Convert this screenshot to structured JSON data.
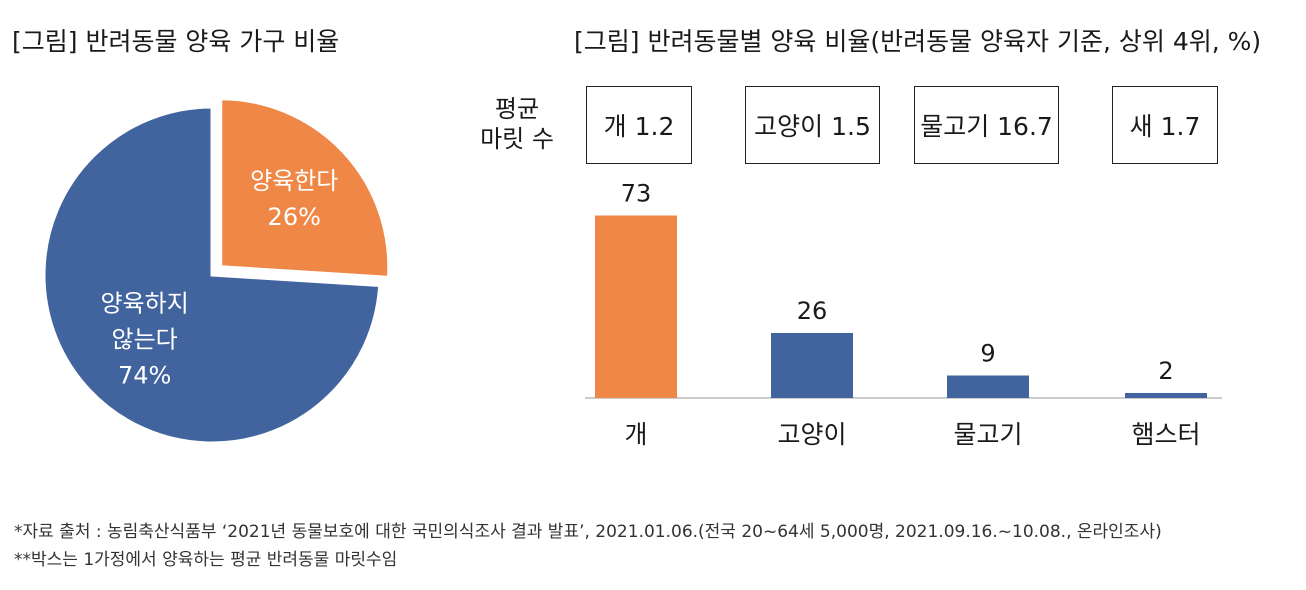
{
  "titles": {
    "pie": "[그림] 반려동물 양육 가구 비율",
    "bar": "[그림] 반려동물별 양육 비율(반려동물 양육자 기준, 상위 4위, %)"
  },
  "avg_label": {
    "line1": "평균",
    "line2": "마릿 수"
  },
  "avg_boxes": [
    "개 1.2",
    "고양이 1.5",
    "물고기 16.7",
    "새 1.7"
  ],
  "colors": {
    "orange": "#ef8747",
    "blue": "#41639e"
  },
  "chart_data": [
    {
      "type": "pie",
      "slices": [
        {
          "name": "양육한다",
          "value": 26,
          "label": "26%",
          "color": "#ef8747"
        },
        {
          "name": "양육하지 않는다",
          "name_lines": [
            "양육하지",
            "않는다"
          ],
          "value": 74,
          "label": "74%",
          "color": "#41639e"
        }
      ]
    },
    {
      "type": "bar",
      "categories": [
        "개",
        "고양이",
        "물고기",
        "햄스터"
      ],
      "values": [
        73,
        26,
        9,
        2
      ],
      "colors": [
        "#ef8747",
        "#41639e",
        "#41639e",
        "#41639e"
      ],
      "ylim": [
        0,
        80
      ]
    }
  ],
  "footnotes": [
    "*자료 출처 : 농림축산식품부 ‘2021년 동물보호에 대한 국민의식조사 결과 발표’, 2021.01.06.(전국 20~64세 5,000명, 2021.09.16.~10.08., 온라인조사)",
    "**박스는 1가정에서 양육하는 평균 반려동물 마릿수임"
  ]
}
